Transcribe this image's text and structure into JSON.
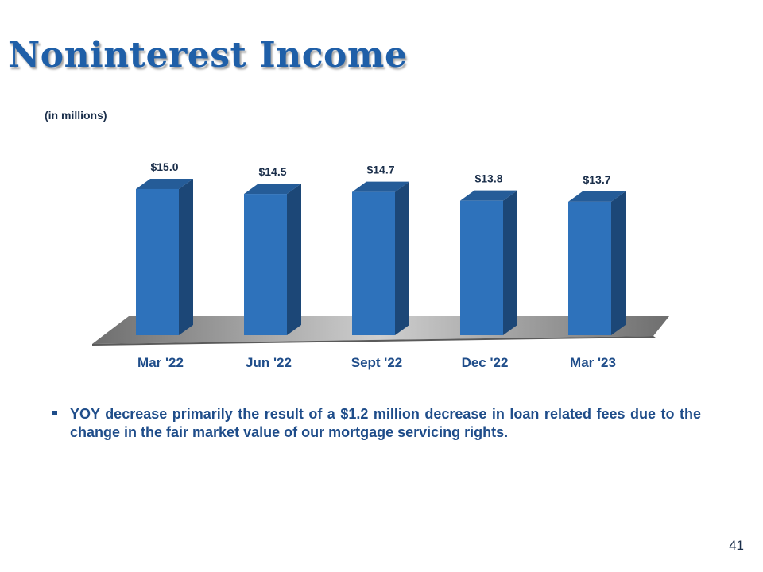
{
  "slide": {
    "title": "Noninterest Income",
    "units_note": "(in millions)",
    "bullet": "YOY decrease primarily the result of a $1.2 million decrease in loan related fees due to the change in the fair market value of our mortgage servicing rights.",
    "page_number": "41"
  },
  "chart_data": {
    "type": "bar",
    "title": "",
    "xlabel": "",
    "ylabel": "(in millions)",
    "categories": [
      "Mar '22",
      "Jun '22",
      "Sept '22",
      "Dec '22",
      "Mar '23"
    ],
    "values": [
      15.0,
      14.5,
      14.7,
      13.8,
      13.7
    ],
    "data_labels": [
      "$15.0",
      "$14.5",
      "$14.7",
      "$13.8",
      "$13.7"
    ],
    "ylim": [
      0,
      16.3
    ],
    "grid": false,
    "legend": "none",
    "style": "3d-column",
    "colors": {
      "bar_front": "#2e72bb",
      "bar_side": "#1c4777",
      "bar_top": "#255c98",
      "floor": "#a6a6a6"
    }
  }
}
